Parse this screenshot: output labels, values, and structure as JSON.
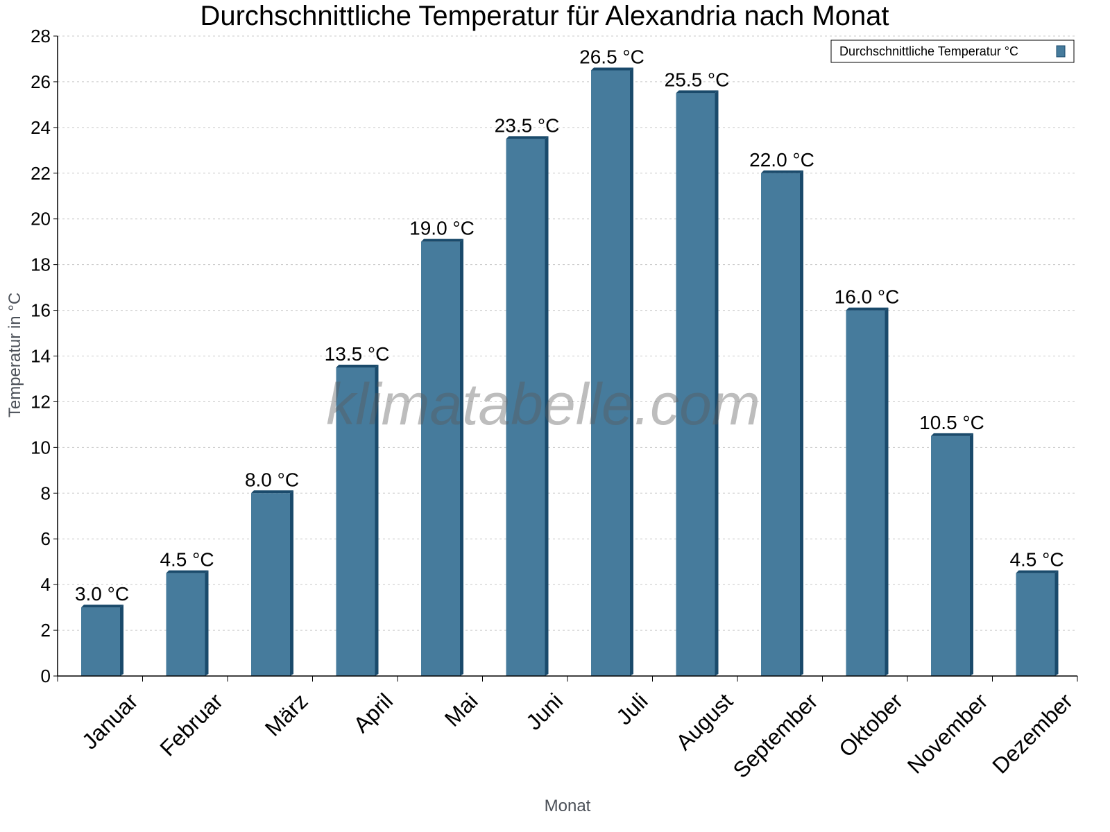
{
  "chart_data": {
    "type": "bar",
    "title": "Durchschnittliche Temperatur für Alexandria nach Monat",
    "xlabel": "Monat",
    "ylabel": "Temperatur in °C",
    "categories": [
      "Januar",
      "Februar",
      "März",
      "April",
      "Mai",
      "Juni",
      "Juli",
      "August",
      "September",
      "Oktober",
      "November",
      "Dezember"
    ],
    "series": [
      {
        "name": "Durchschnittliche Temperatur °C",
        "values": [
          3.0,
          4.5,
          8.0,
          13.5,
          19.0,
          23.5,
          26.5,
          25.5,
          22.0,
          16.0,
          10.5,
          4.5
        ]
      }
    ],
    "data_labels": [
      "3.0 °C",
      "4.5 °C",
      "8.0 °C",
      "13.5 °C",
      "19.0 °C",
      "23.5 °C",
      "26.5 °C",
      "25.5 °C",
      "22.0 °C",
      "16.0 °C",
      "10.5 °C",
      "4.5 °C"
    ],
    "ylim": [
      0,
      28
    ],
    "yticks": [
      0,
      2,
      4,
      6,
      8,
      10,
      12,
      14,
      16,
      18,
      20,
      22,
      24,
      26,
      28
    ],
    "grid": true,
    "legend_position": "top-right",
    "watermark": "klimatabelle.com",
    "colors": {
      "bar": "#467b9c",
      "bar_side": "#1a4a6b",
      "grid": "#c8c8c8"
    }
  }
}
